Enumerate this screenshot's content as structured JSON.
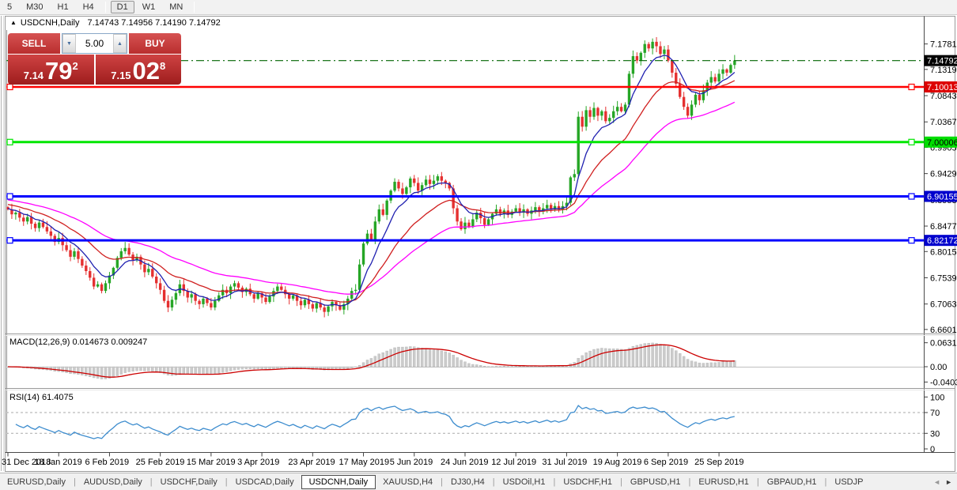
{
  "toolbar": {
    "timeframes": [
      "5",
      "M30",
      "H1",
      "H4",
      "D1",
      "W1",
      "MN"
    ],
    "active": "D1"
  },
  "icons": {
    "triangle": "▲",
    "spin_up": "▲",
    "spin_down": "▼",
    "tab_scroll_left": "◄",
    "tab_scroll_right": "►"
  },
  "chart": {
    "title_symbol": "USDCNH,Daily",
    "ohlc_text": "7.14743 7.14956 7.14190 7.14792",
    "trade_panel": {
      "sell_label": "SELL",
      "buy_label": "BUY",
      "volume": "5.00",
      "sell_small": "7.14",
      "sell_big": "79",
      "sell_sup": "2",
      "buy_small": "7.15",
      "buy_big": "02",
      "buy_sup": "8"
    }
  },
  "chart_data": {
    "type": "candlestick",
    "symbol": "USDCNH",
    "timeframe": "Daily",
    "current_ohlc": {
      "open": 7.14743,
      "high": 7.14956,
      "low": 7.1419,
      "close": 7.14792
    },
    "bid": 7.14792,
    "ask": 7.15028,
    "first_open": 6.882,
    "closes": [
      6.878,
      6.869,
      6.872,
      6.863,
      6.856,
      6.864,
      6.852,
      6.844,
      6.854,
      6.846,
      6.838,
      6.83,
      6.819,
      6.826,
      6.813,
      6.804,
      6.792,
      6.802,
      6.788,
      6.776,
      6.766,
      6.754,
      6.738,
      6.742,
      6.73,
      6.744,
      6.758,
      6.772,
      6.79,
      6.802,
      6.808,
      6.796,
      6.786,
      6.792,
      6.778,
      6.764,
      6.77,
      6.756,
      6.744,
      6.732,
      6.712,
      6.7,
      6.714,
      6.726,
      6.742,
      6.73,
      6.718,
      6.724,
      6.712,
      6.706,
      6.716,
      6.708,
      6.7,
      6.712,
      6.722,
      6.732,
      6.726,
      6.738,
      6.744,
      6.736,
      6.728,
      6.734,
      6.724,
      6.716,
      6.726,
      6.718,
      6.71,
      6.72,
      6.73,
      6.738,
      6.732,
      6.724,
      6.716,
      6.722,
      6.712,
      6.704,
      6.714,
      6.706,
      6.698,
      6.708,
      6.7,
      6.692,
      6.702,
      6.71,
      6.704,
      6.696,
      6.706,
      6.716,
      6.73,
      6.732,
      6.778,
      6.816,
      6.834,
      6.823,
      6.856,
      6.878,
      6.868,
      6.894,
      6.912,
      6.928,
      6.916,
      6.906,
      6.918,
      6.934,
      6.926,
      6.912,
      6.922,
      6.932,
      6.924,
      6.93,
      6.938,
      6.93,
      6.926,
      6.916,
      6.88,
      6.856,
      6.842,
      6.854,
      6.846,
      6.86,
      6.872,
      6.862,
      6.85,
      6.86,
      6.87,
      6.878,
      6.87,
      6.876,
      6.868,
      6.874,
      6.88,
      6.872,
      6.878,
      6.87,
      6.876,
      6.882,
      6.874,
      6.88,
      6.886,
      6.878,
      6.884,
      6.878,
      6.884,
      6.89,
      6.936,
      6.942,
      7.046,
      7.028,
      7.058,
      7.046,
      7.062,
      7.048,
      7.056,
      7.038,
      7.044,
      7.056,
      7.064,
      7.056,
      7.068,
      7.124,
      7.156,
      7.148,
      7.162,
      7.178,
      7.17,
      7.182,
      7.174,
      7.16,
      7.168,
      7.148,
      7.126,
      7.106,
      7.082,
      7.064,
      7.048,
      7.068,
      7.086,
      7.076,
      7.094,
      7.108,
      7.118,
      7.11,
      7.124,
      7.132,
      7.126,
      7.14,
      7.148
    ],
    "x_labels": [
      "31 Dec 2018",
      "18 Jan 2019",
      "6 Feb 2019",
      "25 Feb 2019",
      "15 Mar 2019",
      "3 Apr 2019",
      "23 Apr 2019",
      "17 May 2019",
      "5 Jun 2019",
      "24 Jun 2019",
      "12 Jul 2019",
      "31 Jul 2019",
      "19 Aug 2019",
      "6 Sep 2019",
      "25 Sep 2019"
    ],
    "x_label_indices": [
      0,
      13,
      26,
      39,
      52,
      65,
      78,
      91,
      104,
      117,
      130,
      143,
      156,
      169,
      182
    ],
    "price_ticks": [
      "7.17810",
      "7.13190",
      "7.08430",
      "7.03670",
      "6.99050",
      "6.94290",
      "6.89530",
      "6.84770",
      "6.80150",
      "6.75390",
      "6.70630",
      "6.66010"
    ],
    "price_lines": [
      {
        "price": 7.10013,
        "color": "#FF0000",
        "width": 2.5,
        "badge_bg": "#DD0000",
        "badge_fg": "#FFFFFF",
        "label": "7.10013"
      },
      {
        "price": 7.00006,
        "color": "#00E600",
        "width": 3,
        "badge_bg": "#00DD00",
        "badge_fg": "#000000",
        "label": "7.00006"
      },
      {
        "price": 6.90155,
        "color": "#0000FF",
        "width": 3,
        "badge_bg": "#0000CD",
        "badge_fg": "#FFFFFF",
        "label": "6.90155"
      },
      {
        "price": 6.82172,
        "color": "#0000FF",
        "width": 3,
        "badge_bg": "#0000CD",
        "badge_fg": "#FFFFFF",
        "label": "6.82172"
      }
    ],
    "current_price_line": {
      "price": 7.14792,
      "color": "#006600",
      "style": "dash-dot",
      "badge_bg": "#000000",
      "badge_fg": "#FFFFFF",
      "label": "7.14792"
    },
    "moving_averages": [
      {
        "period": 45,
        "color": "#FF00FF",
        "seed": 6.896
      },
      {
        "period": 21,
        "color": "#D02020",
        "seed": 6.888
      },
      {
        "period": 8,
        "color": "#2020B0",
        "seed": 6.88
      }
    ],
    "candle_colors": {
      "up": "#26A626",
      "down": "#E53030"
    },
    "macd": {
      "label": "MACD(12,26,9) 0.014673 0.009247",
      "fast": 12,
      "slow": 26,
      "signal": 9,
      "ticks": [
        {
          "v": 0.063184,
          "t": "0.063184"
        },
        {
          "v": 0,
          "t": "0.00"
        },
        {
          "v": -0.040355,
          "t": "-0.040355"
        }
      ],
      "hist_color": "#CBCBCB",
      "signal_color": "#CC0000"
    },
    "rsi": {
      "label": "RSI(14) 61.4075",
      "period": 14,
      "ticks": [
        {
          "v": 100,
          "t": "100"
        },
        {
          "v": 70,
          "t": "70"
        },
        {
          "v": 30,
          "t": "30"
        },
        {
          "v": 0,
          "t": "0"
        }
      ],
      "levels": [
        70,
        30
      ],
      "color": "#3C8CCE"
    }
  },
  "bottom_tabs": {
    "tabs": [
      "EURUSD,Daily",
      "AUDUSD,Daily",
      "USDCHF,Daily",
      "USDCAD,Daily",
      "USDCNH,Daily",
      "XAUUSD,H4",
      "DJ30,H4",
      "USDOil,H1",
      "USDCHF,H1",
      "GBPUSD,H1",
      "EURUSD,H1",
      "GBPAUD,H1",
      "USDJP"
    ],
    "active": "USDCNH,Daily"
  }
}
